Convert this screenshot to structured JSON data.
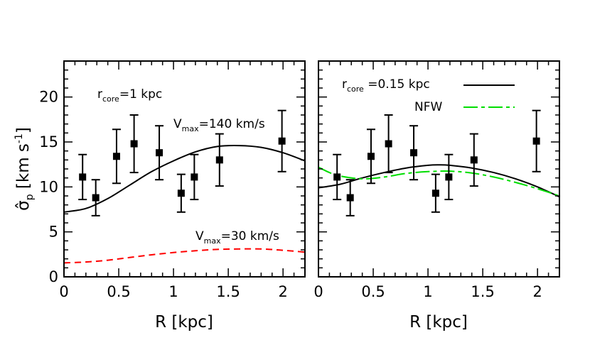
{
  "chart_data": [
    {
      "type": "scatter",
      "xlabel": "R [kpc]",
      "ylabel_main": "σ̂",
      "ylabel_sub": "p",
      "ylabel_unit": " [km s",
      "ylabel_sup": "-1",
      "ylabel_close": "]",
      "xlim": [
        0,
        2.2
      ],
      "ylim": [
        0,
        24
      ],
      "xticks": [
        0,
        0.5,
        1,
        1.5,
        2
      ],
      "xtick_labels": [
        "0",
        "0.5",
        "1",
        "1.5",
        "2"
      ],
      "yticks": [
        0,
        5,
        10,
        15,
        20
      ],
      "ytick_labels": [
        "0",
        "5",
        "10",
        "15",
        "20"
      ],
      "annotations": [
        {
          "main": "r",
          "sub": "core",
          "rest": "=1 kpc"
        },
        {
          "main": "V",
          "sub": "max",
          "rest": "=140 km/s"
        },
        {
          "main": "V",
          "sub": "max",
          "rest": "=30 km/s"
        }
      ],
      "points": [
        {
          "x": 0.17,
          "y": 11.1,
          "err": 2.5
        },
        {
          "x": 0.29,
          "y": 8.8,
          "err": 2.0
        },
        {
          "x": 0.48,
          "y": 13.4,
          "err": 3.0
        },
        {
          "x": 0.64,
          "y": 14.8,
          "err": 3.2
        },
        {
          "x": 0.87,
          "y": 13.8,
          "err": 3.0
        },
        {
          "x": 1.07,
          "y": 9.3,
          "err": 2.1
        },
        {
          "x": 1.19,
          "y": 11.1,
          "err": 2.5
        },
        {
          "x": 1.42,
          "y": 13.0,
          "err": 2.9
        },
        {
          "x": 1.99,
          "y": 15.1,
          "err": 3.4
        }
      ],
      "series": [
        {
          "color": "#000000",
          "style": "solid",
          "x": [
            0,
            0.2,
            0.4,
            0.6,
            0.8,
            1.0,
            1.2,
            1.4,
            1.6,
            1.8,
            2.0,
            2.2
          ],
          "y": [
            7.2,
            7.6,
            8.7,
            10.2,
            11.7,
            12.9,
            13.9,
            14.5,
            14.6,
            14.4,
            13.8,
            12.9
          ]
        },
        {
          "color": "#ff0000",
          "style": "dashed",
          "x": [
            0,
            0.2,
            0.4,
            0.6,
            0.8,
            1.0,
            1.2,
            1.4,
            1.6,
            1.8,
            2.0,
            2.2
          ],
          "y": [
            1.55,
            1.65,
            1.85,
            2.15,
            2.45,
            2.7,
            2.9,
            3.05,
            3.1,
            3.1,
            2.95,
            2.75
          ]
        }
      ]
    },
    {
      "type": "scatter",
      "xlabel": "R [kpc]",
      "xlim": [
        0,
        2.2
      ],
      "ylim": [
        0,
        24
      ],
      "xticks": [
        0,
        0.5,
        1,
        1.5,
        2
      ],
      "xtick_labels": [
        "0",
        "0.5",
        "1",
        "1.5",
        "2"
      ],
      "yticks": [
        0,
        5,
        10,
        15,
        20
      ],
      "annotations": [
        {
          "main": "r",
          "sub": "core",
          "rest": " =0.15 kpc"
        },
        {
          "text": "NFW"
        }
      ],
      "points": [
        {
          "x": 0.17,
          "y": 11.1,
          "err": 2.5
        },
        {
          "x": 0.29,
          "y": 8.8,
          "err": 2.0
        },
        {
          "x": 0.48,
          "y": 13.4,
          "err": 3.0
        },
        {
          "x": 0.64,
          "y": 14.8,
          "err": 3.2
        },
        {
          "x": 0.87,
          "y": 13.8,
          "err": 3.0
        },
        {
          "x": 1.07,
          "y": 9.3,
          "err": 2.1
        },
        {
          "x": 1.19,
          "y": 11.1,
          "err": 2.5
        },
        {
          "x": 1.42,
          "y": 13.0,
          "err": 2.9
        },
        {
          "x": 1.99,
          "y": 15.1,
          "err": 3.4
        }
      ],
      "series": [
        {
          "color": "#000000",
          "style": "solid",
          "x": [
            0,
            0.2,
            0.4,
            0.6,
            0.8,
            1.0,
            1.1,
            1.2,
            1.4,
            1.6,
            1.8,
            2.0,
            2.2
          ],
          "y": [
            9.9,
            10.3,
            11.0,
            11.6,
            12.1,
            12.4,
            12.45,
            12.4,
            12.1,
            11.6,
            10.9,
            10.0,
            8.9
          ]
        },
        {
          "color": "#00dd00",
          "style": "longdash",
          "x": [
            0,
            0.1,
            0.2,
            0.4,
            0.6,
            0.8,
            1.0,
            1.2,
            1.4,
            1.6,
            1.8,
            2.0,
            2.2
          ],
          "y": [
            12.2,
            11.6,
            11.2,
            10.9,
            11.1,
            11.5,
            11.7,
            11.75,
            11.55,
            11.1,
            10.5,
            9.8,
            9.0
          ]
        }
      ]
    }
  ]
}
